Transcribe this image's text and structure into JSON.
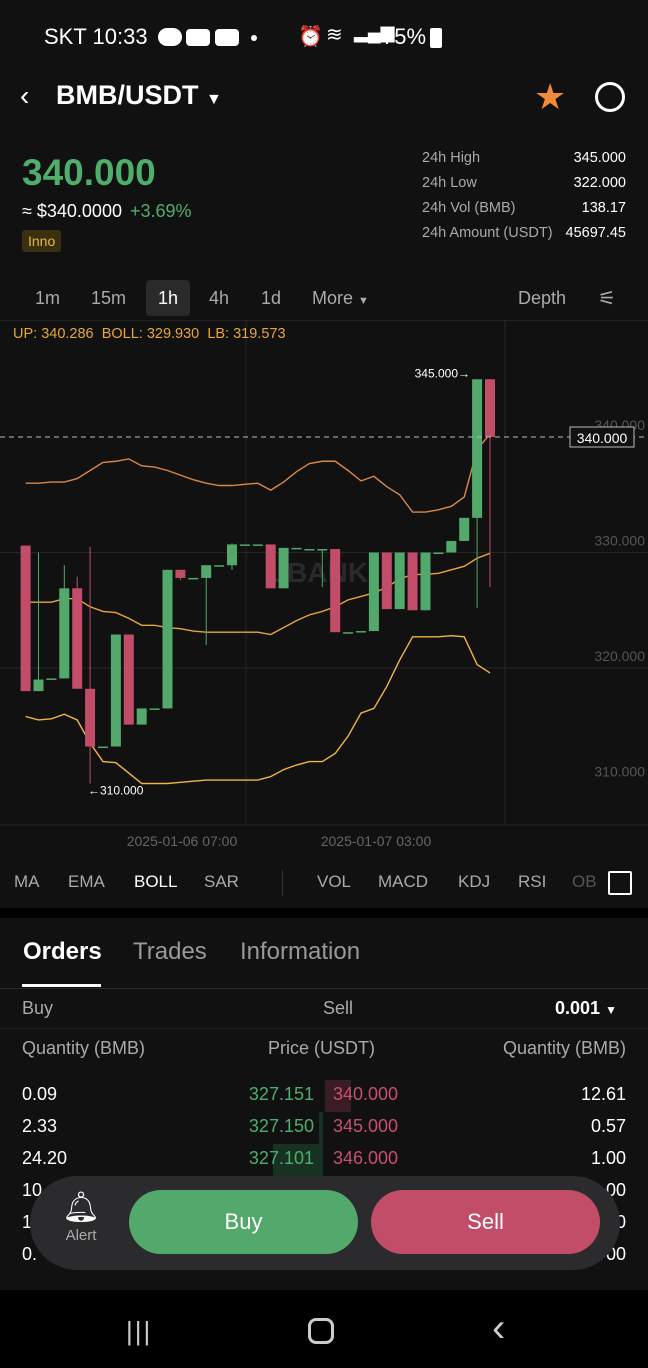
{
  "status": {
    "carrier_time": "SKT 10:33",
    "battery": "75%",
    "icons": [
      "talk-icon",
      "youtube-icon",
      "youtube-icon",
      "dot-icon",
      "alarm-icon",
      "wifi-icon",
      "signal-icon",
      "battery-icon"
    ]
  },
  "header": {
    "pair": "BMB/USDT",
    "back_icon": "chevron-left-icon",
    "favorite_icon": "star-icon",
    "share_icon": "share-icon"
  },
  "ticker": {
    "price": "340.000",
    "approx": "≈ $340.0000",
    "change": "+3.69%",
    "tag": "Inno",
    "stats": [
      {
        "label": "24h High",
        "value": "345.000"
      },
      {
        "label": "24h Low",
        "value": "322.000"
      },
      {
        "label": "24h Vol (BMB)",
        "value": "138.17"
      },
      {
        "label": "24h Amount (USDT)",
        "value": "45697.45"
      }
    ]
  },
  "timeframes": {
    "items": [
      "1m",
      "15m",
      "1h",
      "4h",
      "1d",
      "More"
    ],
    "active": "1h",
    "depth": "Depth"
  },
  "indicator_line": {
    "up": "UP: 340.286",
    "boll": "BOLL: 329.930",
    "lb": "LB: 319.573"
  },
  "chart_data": {
    "type": "candlestick",
    "watermark": "LBANK",
    "y_ticks": [
      "340.000",
      "330.000",
      "320.000",
      "310.000"
    ],
    "x_ticks": [
      "2025-01-06 07:00",
      "2025-01-07 03:00"
    ],
    "last_price": "340.000",
    "high_label": "345.000→",
    "low_label": "←310.000",
    "ylim": [
      306.5,
      348
    ],
    "colors": {
      "up": "#53a86b",
      "down": "#c24d69",
      "upper": "#d9884a",
      "mid": "#e8a53c",
      "lower": "#f0b447"
    },
    "candles": [
      [
        330.6,
        330.6,
        318,
        318
      ],
      [
        318,
        330,
        318,
        319
      ],
      [
        319.1,
        319.1,
        319.1,
        319.1
      ],
      [
        319.1,
        328.9,
        319.1,
        326.9
      ],
      [
        326.9,
        327.9,
        318.2,
        318.2
      ],
      [
        318.2,
        330.5,
        310,
        313.2
      ],
      [
        313.2,
        313.2,
        313.2,
        313.2
      ],
      [
        313.2,
        322.9,
        313.2,
        322.9
      ],
      [
        322.9,
        322.9,
        315.1,
        315.1
      ],
      [
        315.1,
        316.5,
        315.1,
        316.5
      ],
      [
        316.5,
        316.5,
        316.5,
        316.5
      ],
      [
        316.5,
        328.5,
        316.5,
        328.5
      ],
      [
        328.5,
        328.5,
        327.6,
        327.8
      ],
      [
        327.8,
        327.8,
        327.8,
        327.8
      ],
      [
        327.8,
        328.9,
        322,
        328.9
      ],
      [
        328.9,
        328.9,
        328.9,
        328.9
      ],
      [
        328.9,
        330.8,
        328.5,
        330.7
      ],
      [
        330.7,
        330.7,
        330.7,
        330.7
      ],
      [
        330.7,
        330.7,
        330.7,
        330.7
      ],
      [
        330.7,
        330.7,
        326.9,
        326.9
      ],
      [
        326.9,
        330.4,
        326.9,
        330.4
      ],
      [
        330.4,
        330.4,
        330.4,
        330.4
      ],
      [
        330.3,
        330.3,
        330.3,
        330.3
      ],
      [
        330.3,
        330.3,
        327,
        330.3
      ],
      [
        330.3,
        330.3,
        323.1,
        323.1
      ],
      [
        323.1,
        323.1,
        323.1,
        323.1
      ],
      [
        323.2,
        323.2,
        323.2,
        323.2
      ],
      [
        323.2,
        330,
        323.2,
        330
      ],
      [
        330,
        330,
        325.1,
        325.1
      ],
      [
        325.1,
        330,
        325.1,
        330
      ],
      [
        330,
        330,
        325,
        325
      ],
      [
        325,
        330,
        325,
        330
      ],
      [
        330,
        330,
        330,
        330
      ],
      [
        330,
        331,
        330,
        331
      ],
      [
        331,
        333,
        331,
        333
      ],
      [
        333,
        345,
        325.2,
        345
      ],
      [
        345,
        345,
        327,
        340
      ]
    ],
    "boll_upper": [
      336,
      336,
      336.1,
      336.1,
      336.4,
      337.1,
      337.8,
      337.9,
      338.1,
      337.5,
      337.4,
      337.1,
      336.7,
      336.3,
      336,
      335.8,
      335.8,
      335.9,
      336,
      335.4,
      336.1,
      337,
      337.7,
      337.9,
      337.9,
      337.1,
      336.2,
      336.6,
      335.7,
      335,
      333.5,
      333.5,
      333.7,
      334,
      334.8,
      338.9,
      340.286
    ],
    "boll_mid": [
      325.7,
      325.7,
      325.7,
      326,
      326,
      325.3,
      324.9,
      324.8,
      324.3,
      323.7,
      323.7,
      323.5,
      323.4,
      323.2,
      323.1,
      323.1,
      323.1,
      323.1,
      323.1,
      322.9,
      323.5,
      324.1,
      324.6,
      324.9,
      325.3,
      325.9,
      326.2,
      326.5,
      327,
      327.7,
      328.1,
      328.1,
      328.2,
      328.5,
      328.8,
      329.5,
      329.93
    ],
    "boll_lower": [
      315.8,
      315.5,
      315.6,
      316,
      315.5,
      313.5,
      311.9,
      311.8,
      310.9,
      310,
      310,
      310,
      310.1,
      310.2,
      310.3,
      310.3,
      310.3,
      310.3,
      310.3,
      310.6,
      311.2,
      311.6,
      311.9,
      311.9,
      312.6,
      314.1,
      316.1,
      316.5,
      318.4,
      320.7,
      322.7,
      322.7,
      322.7,
      322.8,
      322.7,
      320.3,
      319.573
    ]
  },
  "indicators": [
    "MA",
    "EMA",
    "BOLL",
    "SAR",
    "VOL",
    "MACD",
    "KDJ",
    "RSI",
    "OB"
  ],
  "active_indicator": "BOLL",
  "orders": {
    "tabs": [
      "Orders",
      "Trades",
      "Information"
    ],
    "active": "Orders",
    "buy": "Buy",
    "sell": "Sell",
    "precision": "0.001",
    "cols": [
      "Quantity (BMB)",
      "Price (USDT)",
      "Quantity (BMB)"
    ],
    "rows": [
      {
        "bq": "0.09",
        "bp": "327.151",
        "ap": "340.000",
        "aq": "12.61"
      },
      {
        "bq": "2.33",
        "bp": "327.150",
        "ap": "345.000",
        "aq": "0.57"
      },
      {
        "bq": "24.20",
        "bp": "327.101",
        "ap": "346.000",
        "aq": "1.00"
      },
      {
        "bq": "10",
        "bp": "",
        "ap": "",
        "aq": ".00"
      },
      {
        "bq": "1",
        "bp": "",
        "ap": "",
        "aq": "0"
      },
      {
        "bq": "0.",
        "bp": "",
        "ap": "",
        "aq": "00"
      }
    ]
  },
  "actions": {
    "alert": "Alert",
    "buy": "Buy",
    "sell": "Sell",
    "buy_color": "#53a86b",
    "sell_color": "#c24d69"
  }
}
